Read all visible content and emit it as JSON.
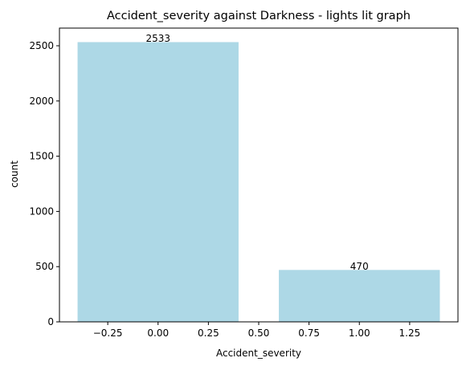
{
  "chart_data": {
    "type": "bar",
    "title": "Accident_severity against Darkness - lights lit graph",
    "xlabel": "Accident_severity",
    "ylabel": "count",
    "bars": [
      {
        "x": 0,
        "value": 2533,
        "label": "2533"
      },
      {
        "x": 1,
        "value": 470,
        "label": "470"
      }
    ],
    "bar_width": 0.8,
    "xlim": [
      -0.49,
      1.49
    ],
    "ylim": [
      0,
      2660
    ],
    "xticks": [
      -0.25,
      0.0,
      0.25,
      0.5,
      0.75,
      1.0,
      1.25
    ],
    "xtick_labels": [
      "−0.25",
      "0.00",
      "0.25",
      "0.50",
      "0.75",
      "1.00",
      "1.25"
    ],
    "yticks": [
      0,
      500,
      1000,
      1500,
      2000,
      2500
    ],
    "ytick_labels": [
      "0",
      "500",
      "1000",
      "1500",
      "2000",
      "2500"
    ],
    "bar_color": "#add8e6",
    "grid": false,
    "legend": "none"
  }
}
